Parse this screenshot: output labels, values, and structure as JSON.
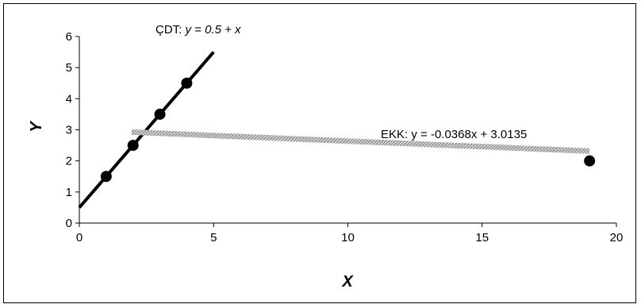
{
  "chart_data": {
    "type": "scatter",
    "xlabel": "X",
    "ylabel": "Y",
    "xlim": [
      0,
      20
    ],
    "ylim": [
      0,
      6
    ],
    "x_ticks": [
      "0",
      "5",
      "10",
      "15",
      "20"
    ],
    "y_ticks": [
      "0",
      "1",
      "2",
      "3",
      "4",
      "5",
      "6"
    ],
    "grid": false,
    "legend": "none",
    "points": [
      {
        "x": 1,
        "y": 1.5
      },
      {
        "x": 2,
        "y": 2.5
      },
      {
        "x": 3,
        "y": 3.5
      },
      {
        "x": 4,
        "y": 4.5
      },
      {
        "x": 19,
        "y": 2
      }
    ],
    "lines": [
      {
        "label_prefix": "ÇDT: ",
        "label_eq": "y = 0.5 + x",
        "intercept": 0.5,
        "slope": 1,
        "x_range": [
          0,
          5
        ],
        "color": "#000000",
        "style": "solid"
      },
      {
        "label": "EKK: y = -0.0368x + 3.0135",
        "intercept": 3.0135,
        "slope": -0.0368,
        "x_range": [
          1,
          19
        ],
        "color": "#b8b8b8",
        "style": "hatched"
      }
    ]
  }
}
